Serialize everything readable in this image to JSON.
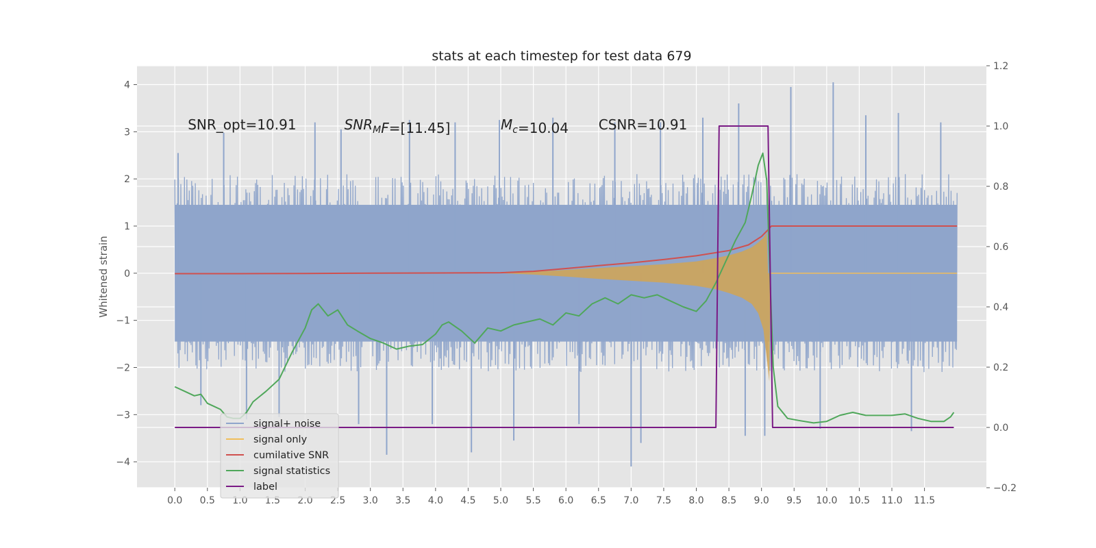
{
  "chart_data": {
    "type": "line",
    "title": "stats at each timestep for test data 679",
    "ylabel": "Whitened strain",
    "xlabel": "",
    "xlim": [
      -0.58,
      12.45
    ],
    "ylim": [
      -4.55,
      4.4
    ],
    "y2lim": [
      -0.2,
      1.2
    ],
    "grid": true,
    "legend_placement": "lower-left",
    "x_ticks": [
      0.0,
      0.5,
      1.0,
      1.5,
      2.0,
      2.5,
      3.0,
      3.5,
      4.0,
      4.5,
      5.0,
      5.5,
      6.0,
      6.5,
      7.0,
      7.5,
      8.0,
      8.5,
      9.0,
      9.5,
      10.0,
      10.5,
      11.0,
      11.5
    ],
    "x_tick_labels": [
      "0.0",
      "0.5",
      "1.0",
      "1.5",
      "2.0",
      "2.5",
      "3.0",
      "3.5",
      "4.0",
      "4.5",
      "5.0",
      "5.5",
      "6.0",
      "6.5",
      "7.0",
      "7.5",
      "8.0",
      "8.5",
      "9.0",
      "9.5",
      "10.0",
      "10.5",
      "11.0",
      "11.5"
    ],
    "y_ticks": [
      -4,
      -3,
      -2,
      -1,
      0,
      1,
      2,
      3,
      4
    ],
    "y_tick_labels": [
      "−4",
      "−3",
      "−2",
      "−1",
      "0",
      "1",
      "2",
      "3",
      "4"
    ],
    "y2_ticks": [
      -0.2,
      0.0,
      0.2,
      0.4,
      0.6,
      0.8,
      1.0,
      1.2
    ],
    "y2_tick_labels": [
      "−0.2",
      "0.0",
      "0.2",
      "0.4",
      "0.6",
      "0.8",
      "1.0",
      "1.2"
    ],
    "annotations": [
      {
        "x": 0.2,
        "y": 3.15,
        "parts": [
          {
            "t": "SNR_opt=10.91"
          }
        ]
      },
      {
        "x": 2.6,
        "y": 3.15,
        "parts": [
          {
            "t": "SNR",
            "i": true
          },
          {
            "t": "M",
            "i": true,
            "sub": true
          },
          {
            "t": "F",
            "i": true
          },
          {
            "t": "=[11.45]"
          }
        ]
      },
      {
        "x": 5.0,
        "y": 3.15,
        "parts": [
          {
            "t": "M",
            "i": true
          },
          {
            "t": "c",
            "i": true,
            "sub": true
          },
          {
            "t": "=10.04"
          }
        ]
      },
      {
        "x": 6.5,
        "y": 3.15,
        "parts": [
          {
            "t": "CSNR=10.91"
          }
        ]
      }
    ],
    "series": [
      {
        "name": "signal+ noise",
        "axis": "left",
        "color": "#8fa5cb",
        "x_range": [
          0.0,
          12.0
        ],
        "envelope_typical": 1.75,
        "peaks": [
          {
            "x": 0.05,
            "y": 2.55
          },
          {
            "x": 0.4,
            "y": -2.8
          },
          {
            "x": 0.75,
            "y": 2.98
          },
          {
            "x": 1.1,
            "y": -3.1
          },
          {
            "x": 1.6,
            "y": -3.05
          },
          {
            "x": 2.15,
            "y": 3.2
          },
          {
            "x": 2.55,
            "y": 3.05
          },
          {
            "x": 2.82,
            "y": -3.2
          },
          {
            "x": 3.25,
            "y": -3.85
          },
          {
            "x": 3.6,
            "y": 3.25
          },
          {
            "x": 3.95,
            "y": -3.2
          },
          {
            "x": 4.3,
            "y": 3.2
          },
          {
            "x": 4.55,
            "y": -3.8
          },
          {
            "x": 4.98,
            "y": 3.25
          },
          {
            "x": 5.2,
            "y": -3.55
          },
          {
            "x": 5.8,
            "y": 3.3
          },
          {
            "x": 6.2,
            "y": -3.2
          },
          {
            "x": 6.75,
            "y": 3.2
          },
          {
            "x": 7.0,
            "y": -4.1
          },
          {
            "x": 7.15,
            "y": -3.6
          },
          {
            "x": 7.45,
            "y": 3.2
          },
          {
            "x": 8.1,
            "y": 3.3
          },
          {
            "x": 8.65,
            "y": 3.6
          },
          {
            "x": 8.75,
            "y": -3.45
          },
          {
            "x": 9.05,
            "y": -3.45
          },
          {
            "x": 9.45,
            "y": 3.95
          },
          {
            "x": 9.9,
            "y": -3.3
          },
          {
            "x": 10.1,
            "y": 4.05
          },
          {
            "x": 10.6,
            "y": 3.35
          },
          {
            "x": 11.1,
            "y": 3.4
          },
          {
            "x": 11.3,
            "y": -3.35
          },
          {
            "x": 11.75,
            "y": 3.2
          }
        ]
      },
      {
        "name": "signal only",
        "axis": "left",
        "color": "#f0be5a",
        "fill_color": "#d2a454",
        "envelope": [
          [
            5.0,
            0.0
          ],
          [
            5.5,
            0.03
          ],
          [
            6.0,
            0.07
          ],
          [
            6.5,
            0.11
          ],
          [
            7.0,
            0.15
          ],
          [
            7.5,
            0.19
          ],
          [
            8.0,
            0.25
          ],
          [
            8.3,
            0.32
          ],
          [
            8.5,
            0.38
          ],
          [
            8.7,
            0.46
          ],
          [
            8.85,
            0.55
          ],
          [
            8.95,
            0.65
          ],
          [
            9.03,
            0.75
          ],
          [
            9.08,
            0.85
          ],
          [
            9.1,
            0.0
          ],
          [
            12.0,
            0.0
          ]
        ],
        "envelope_lower": [
          [
            5.0,
            0.0
          ],
          [
            5.5,
            -0.03
          ],
          [
            6.0,
            -0.07
          ],
          [
            6.5,
            -0.12
          ],
          [
            7.0,
            -0.16
          ],
          [
            7.5,
            -0.2
          ],
          [
            8.0,
            -0.27
          ],
          [
            8.3,
            -0.34
          ],
          [
            8.5,
            -0.42
          ],
          [
            8.7,
            -0.52
          ],
          [
            8.85,
            -0.65
          ],
          [
            8.95,
            -0.85
          ],
          [
            9.03,
            -1.2
          ],
          [
            9.08,
            -1.8
          ],
          [
            9.12,
            -2.3
          ],
          [
            9.14,
            0.0
          ],
          [
            12.0,
            0.0
          ]
        ]
      },
      {
        "name": "cumilative SNR",
        "axis": "left",
        "color": "#d0504e",
        "points": [
          [
            0.0,
            -0.01
          ],
          [
            1.0,
            -0.01
          ],
          [
            2.0,
            -0.005
          ],
          [
            3.0,
            0.0
          ],
          [
            4.0,
            0.005
          ],
          [
            5.0,
            0.01
          ],
          [
            5.5,
            0.04
          ],
          [
            6.0,
            0.1
          ],
          [
            6.5,
            0.16
          ],
          [
            7.0,
            0.22
          ],
          [
            7.5,
            0.29
          ],
          [
            8.0,
            0.37
          ],
          [
            8.5,
            0.48
          ],
          [
            8.8,
            0.6
          ],
          [
            9.0,
            0.78
          ],
          [
            9.1,
            0.92
          ],
          [
            9.15,
            1.0
          ],
          [
            12.0,
            1.0
          ]
        ]
      },
      {
        "name": "signal statistics",
        "axis": "right",
        "color": "#4fa75a",
        "points": [
          [
            0.0,
            0.135
          ],
          [
            0.15,
            0.12
          ],
          [
            0.3,
            0.105
          ],
          [
            0.4,
            0.11
          ],
          [
            0.5,
            0.08
          ],
          [
            0.6,
            0.07
          ],
          [
            0.7,
            0.06
          ],
          [
            0.8,
            0.035
          ],
          [
            0.9,
            0.03
          ],
          [
            1.0,
            0.03
          ],
          [
            1.1,
            0.05
          ],
          [
            1.2,
            0.085
          ],
          [
            1.4,
            0.12
          ],
          [
            1.6,
            0.16
          ],
          [
            1.8,
            0.25
          ],
          [
            2.0,
            0.33
          ],
          [
            2.1,
            0.39
          ],
          [
            2.2,
            0.41
          ],
          [
            2.35,
            0.37
          ],
          [
            2.5,
            0.39
          ],
          [
            2.65,
            0.34
          ],
          [
            2.8,
            0.32
          ],
          [
            3.0,
            0.295
          ],
          [
            3.2,
            0.28
          ],
          [
            3.4,
            0.26
          ],
          [
            3.6,
            0.27
          ],
          [
            3.8,
            0.275
          ],
          [
            4.0,
            0.31
          ],
          [
            4.1,
            0.34
          ],
          [
            4.2,
            0.35
          ],
          [
            4.4,
            0.32
          ],
          [
            4.6,
            0.28
          ],
          [
            4.8,
            0.33
          ],
          [
            5.0,
            0.32
          ],
          [
            5.2,
            0.34
          ],
          [
            5.4,
            0.35
          ],
          [
            5.6,
            0.36
          ],
          [
            5.8,
            0.34
          ],
          [
            6.0,
            0.38
          ],
          [
            6.2,
            0.37
          ],
          [
            6.4,
            0.41
          ],
          [
            6.6,
            0.43
          ],
          [
            6.8,
            0.41
          ],
          [
            7.0,
            0.44
          ],
          [
            7.2,
            0.43
          ],
          [
            7.4,
            0.44
          ],
          [
            7.6,
            0.42
          ],
          [
            7.8,
            0.4
          ],
          [
            8.0,
            0.385
          ],
          [
            8.15,
            0.42
          ],
          [
            8.3,
            0.48
          ],
          [
            8.45,
            0.55
          ],
          [
            8.6,
            0.62
          ],
          [
            8.75,
            0.68
          ],
          [
            8.85,
            0.77
          ],
          [
            8.95,
            0.87
          ],
          [
            9.02,
            0.91
          ],
          [
            9.08,
            0.82
          ],
          [
            9.13,
            0.5
          ],
          [
            9.18,
            0.2
          ],
          [
            9.25,
            0.07
          ],
          [
            9.4,
            0.03
          ],
          [
            9.6,
            0.022
          ],
          [
            9.8,
            0.015
          ],
          [
            10.0,
            0.02
          ],
          [
            10.2,
            0.04
          ],
          [
            10.4,
            0.05
          ],
          [
            10.6,
            0.04
          ],
          [
            10.8,
            0.04
          ],
          [
            11.0,
            0.04
          ],
          [
            11.2,
            0.045
          ],
          [
            11.4,
            0.03
          ],
          [
            11.6,
            0.02
          ],
          [
            11.8,
            0.02
          ],
          [
            11.9,
            0.035
          ],
          [
            11.95,
            0.05
          ]
        ]
      },
      {
        "name": "label",
        "axis": "right",
        "color": "#7a1a85",
        "points": [
          [
            0.0,
            0.0
          ],
          [
            8.3,
            0.0
          ],
          [
            8.35,
            1.0
          ],
          [
            9.1,
            1.0
          ],
          [
            9.17,
            0.0
          ],
          [
            11.95,
            0.0
          ]
        ]
      }
    ]
  }
}
